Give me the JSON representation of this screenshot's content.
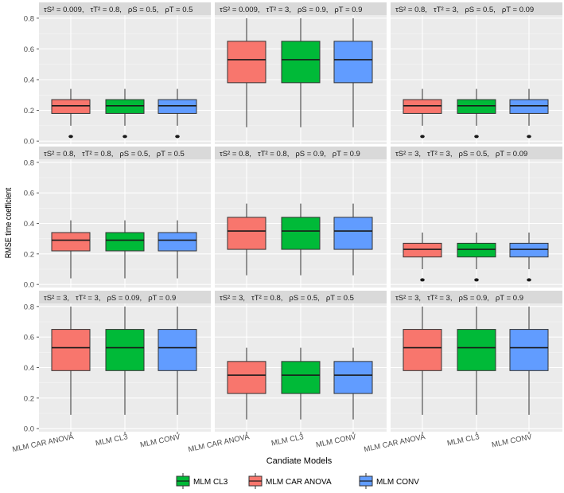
{
  "chart_data": {
    "type": "boxplot",
    "xlabel": "Candiate Models",
    "ylabel": "RMSE time coefficient",
    "ylim": [
      0,
      0.8
    ],
    "yticks": [
      "0.0",
      "0.2",
      "0.4",
      "0.6",
      "0.8"
    ],
    "categories": [
      "MLM CAR ANOVA",
      "MLM CL3",
      "MLM CONV"
    ],
    "colors": {
      "MLM CAR ANOVA": "#F8766D",
      "MLM CL3": "#00BA38",
      "MLM CONV": "#619CFF"
    },
    "legend": {
      "position": "bottom",
      "items": [
        {
          "label": "MLM CL3",
          "color": "#00BA38"
        },
        {
          "label": "MLM CAR ANOVA",
          "color": "#F8766D"
        },
        {
          "label": "MLM CONV",
          "color": "#619CFF"
        }
      ]
    },
    "panels": [
      {
        "strip": [
          "τS² = 0.009,",
          "τT² = 0.8,",
          "ρS = 0.5,",
          "ρT = 0.5"
        ],
        "box": {
          "min": 0.03,
          "q1": 0.18,
          "median": 0.23,
          "q3": 0.27,
          "max": 0.34,
          "outliers": [
            0.03
          ],
          "max_line": 0.8
        }
      },
      {
        "strip": [
          "τS² = 0.009,",
          "τT² = 3,",
          "ρS = 0.9,",
          "ρT = 0.9"
        ],
        "box": {
          "min": 0.09,
          "q1": 0.38,
          "median": 0.53,
          "q3": 0.65,
          "max": 0.8,
          "outliers": []
        }
      },
      {
        "strip": [
          "τS² = 0.8,",
          "τT² = 3,",
          "ρS = 0.5,",
          "ρT = 0.09"
        ],
        "box": {
          "min": 0.03,
          "q1": 0.18,
          "median": 0.23,
          "q3": 0.27,
          "max": 0.34,
          "outliers": [
            0.03
          ],
          "max_line": 0.8
        }
      },
      {
        "strip": [
          "τS² = 0.8,",
          "τT² = 0.8,",
          "ρS = 0.5,",
          "ρT = 0.5"
        ],
        "box": {
          "min": 0.04,
          "q1": 0.22,
          "median": 0.29,
          "q3": 0.34,
          "max": 0.42,
          "outliers": [],
          "max_line": 0.8
        }
      },
      {
        "strip": [
          "τS² = 0.8,",
          "τT² = 0.8,",
          "ρS = 0.9,",
          "ρT = 0.9"
        ],
        "box": {
          "min": 0.06,
          "q1": 0.23,
          "median": 0.35,
          "q3": 0.44,
          "max": 0.53,
          "outliers": [],
          "max_line": 0.8
        }
      },
      {
        "strip": [
          "τS² = 3,",
          "τT² = 3,",
          "ρS = 0.5,",
          "ρT = 0.09"
        ],
        "box": {
          "min": 0.03,
          "q1": 0.18,
          "median": 0.23,
          "q3": 0.27,
          "max": 0.34,
          "outliers": [
            0.03
          ],
          "max_line": 0.8
        }
      },
      {
        "strip": [
          "τS² = 3,",
          "τT² = 3,",
          "ρS = 0.09,",
          "ρT = 0.9"
        ],
        "box": {
          "min": 0.09,
          "q1": 0.38,
          "median": 0.53,
          "q3": 0.65,
          "max": 0.8,
          "outliers": []
        }
      },
      {
        "strip": [
          "τS² = 3,",
          "τT² = 0.8,",
          "ρS = 0.5,",
          "ρT = 0.5"
        ],
        "box": {
          "min": 0.06,
          "q1": 0.23,
          "median": 0.35,
          "q3": 0.44,
          "max": 0.53,
          "outliers": [],
          "max_line": 0.8
        }
      },
      {
        "strip": [
          "τS² = 3,",
          "τT² = 3,",
          "ρS = 0.9,",
          "ρT = 0.9"
        ],
        "box": {
          "min": 0.09,
          "q1": 0.38,
          "median": 0.53,
          "q3": 0.65,
          "max": 0.8,
          "outliers": []
        }
      }
    ]
  }
}
